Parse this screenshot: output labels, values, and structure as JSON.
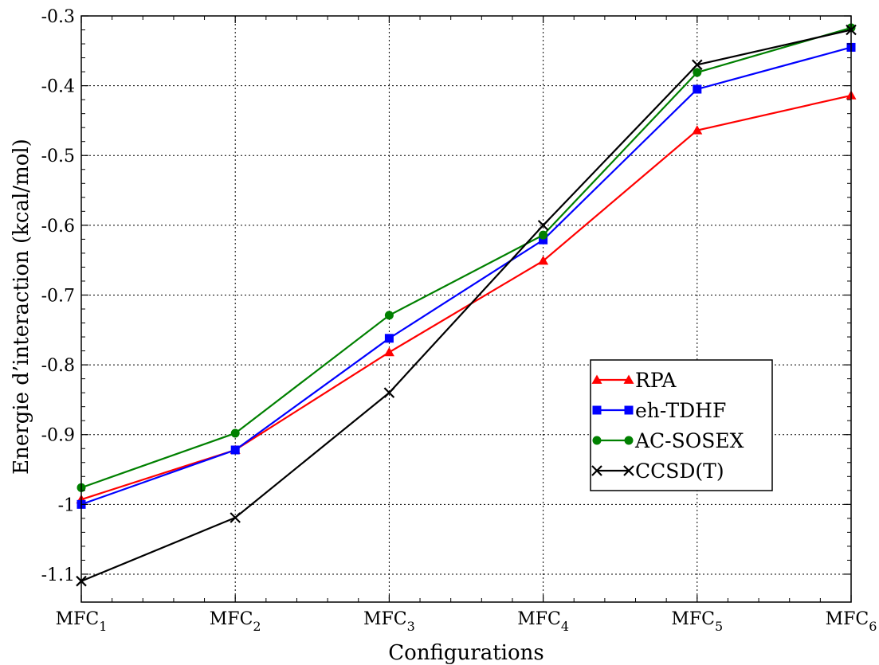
{
  "chart_data": {
    "type": "line",
    "title": "",
    "xlabel": "Configurations",
    "ylabel": "Energie d’interaction (kcal/mol)",
    "categories": [
      {
        "base": "MFC",
        "sub": "1"
      },
      {
        "base": "MFC",
        "sub": "2"
      },
      {
        "base": "MFC",
        "sub": "3"
      },
      {
        "base": "MFC",
        "sub": "4"
      },
      {
        "base": "MFC",
        "sub": "5"
      },
      {
        "base": "MFC",
        "sub": "6"
      }
    ],
    "ylim": [
      -1.14,
      -0.3
    ],
    "yticks": [
      -1.1,
      -1,
      -0.9,
      -0.8,
      -0.7,
      -0.6,
      -0.5,
      -0.4,
      -0.3
    ],
    "ytick_labels": [
      "-1.1",
      "-1",
      "-0.9",
      "-0.8",
      "-0.7",
      "-0.6",
      "-0.5",
      "-0.4",
      "-0.3"
    ],
    "grid": true,
    "legend_position": "right-middle",
    "series": [
      {
        "name": "RPA",
        "color": "#ff0000",
        "marker": "triangle",
        "values": [
          -0.993,
          -0.922,
          -0.782,
          -0.651,
          -0.464,
          -0.414
        ]
      },
      {
        "name": "eh-TDHF",
        "color": "#0000ff",
        "marker": "square",
        "values": [
          -1.0,
          -0.922,
          -0.762,
          -0.621,
          -0.405,
          -0.345
        ]
      },
      {
        "name": "AC-SOSEX",
        "color": "#008000",
        "marker": "circle",
        "values": [
          -0.976,
          -0.898,
          -0.729,
          -0.614,
          -0.381,
          -0.317
        ]
      },
      {
        "name": "CCSD(T)",
        "color": "#000000",
        "marker": "cross",
        "values": [
          -1.11,
          -1.019,
          -0.84,
          -0.6,
          -0.37,
          -0.32
        ]
      }
    ]
  }
}
